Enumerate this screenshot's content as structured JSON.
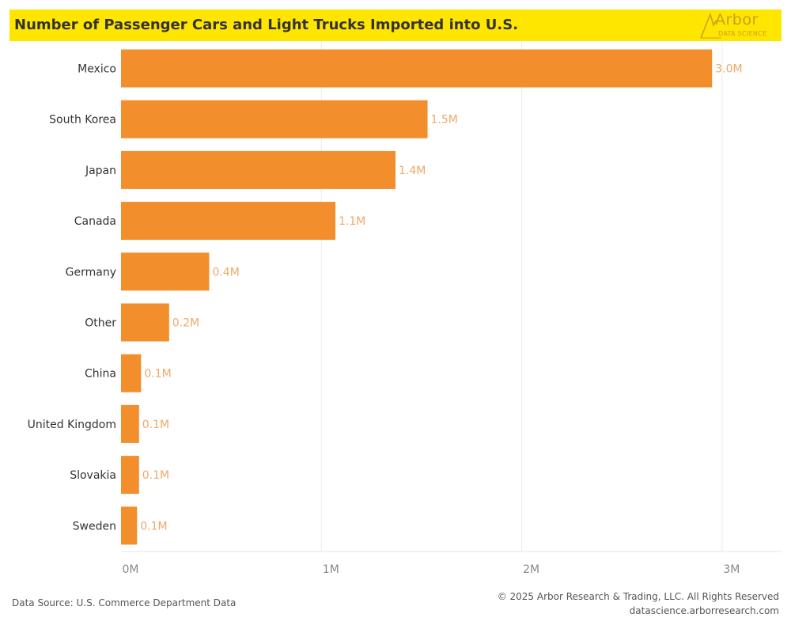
{
  "title": "Number of Passenger Cars and Light Trucks Imported into U.S.",
  "logo": {
    "name": "Arbor",
    "tagline": "DATA SCIENCE"
  },
  "footer": {
    "source": "Data Source: U.S. Commerce Department Data",
    "copyright": "© 2025 Arbor Research & Trading, LLC. All Rights Reserved",
    "website": "datascience.arborresearch.com"
  },
  "colors": {
    "bar": "#f28e2b",
    "label": "#f0a868",
    "title_bg": "#ffe600"
  },
  "chart_data": {
    "type": "bar",
    "orientation": "horizontal",
    "categories": [
      "Mexico",
      "South Korea",
      "Japan",
      "Canada",
      "Germany",
      "Other",
      "China",
      "United Kingdom",
      "Slovakia",
      "Sweden"
    ],
    "values": [
      2.95,
      1.53,
      1.37,
      1.07,
      0.44,
      0.24,
      0.1,
      0.09,
      0.09,
      0.08
    ],
    "value_labels": [
      "3.0M",
      "1.5M",
      "1.4M",
      "1.1M",
      "0.4M",
      "0.2M",
      "0.1M",
      "0.1M",
      "0.1M",
      "0.1M"
    ],
    "xticks": [
      0,
      1,
      2,
      3
    ],
    "xtick_labels": [
      "0M",
      "1M",
      "2M",
      "3M"
    ],
    "xlim": [
      0,
      3.3
    ],
    "grid": true
  }
}
